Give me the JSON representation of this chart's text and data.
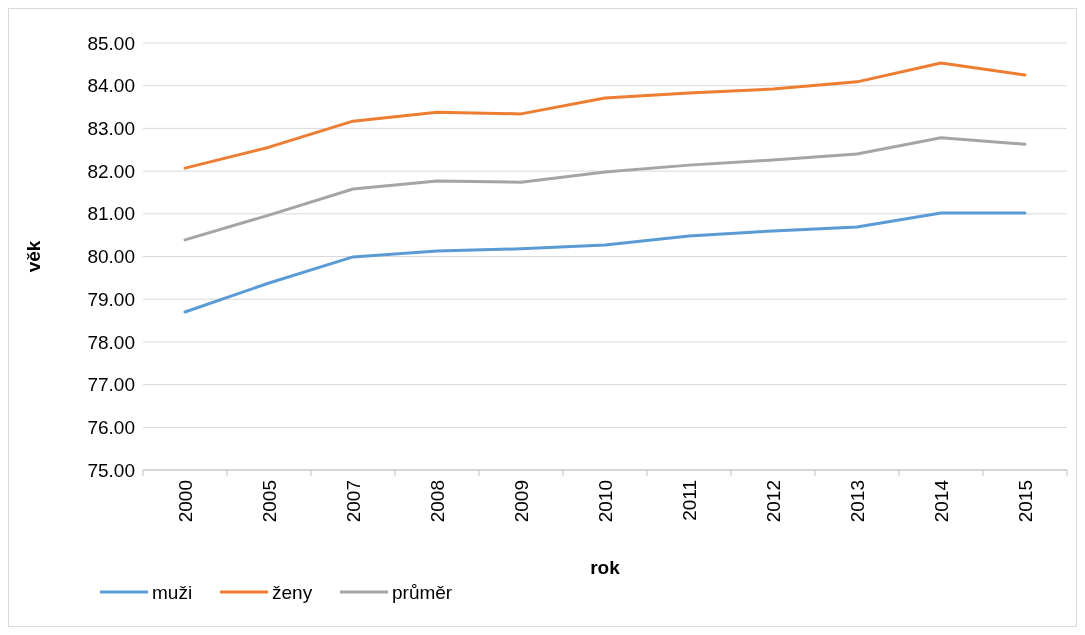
{
  "chart_data": {
    "type": "line",
    "xlabel": "rok",
    "ylabel": "věk",
    "categories": [
      "2000",
      "2005",
      "2007",
      "2008",
      "2009",
      "2010",
      "2011",
      "2012",
      "2013",
      "2014",
      "2015"
    ],
    "series": [
      {
        "name": "muži",
        "color": "#5b9bd5",
        "values": [
          78.7,
          79.38,
          79.99,
          80.13,
          80.18,
          80.27,
          80.48,
          80.6,
          80.69,
          81.02,
          81.02
        ]
      },
      {
        "name": "ženy",
        "color": "#ed7d31",
        "values": [
          82.07,
          82.56,
          83.17,
          83.38,
          83.34,
          83.71,
          83.83,
          83.92,
          84.09,
          84.53,
          84.25
        ]
      },
      {
        "name": "průměr",
        "color": "#a5a5a5",
        "values": [
          80.39,
          80.97,
          81.58,
          81.77,
          81.74,
          81.98,
          82.14,
          82.26,
          82.4,
          82.78,
          82.63
        ]
      }
    ],
    "ylim": [
      75,
      85
    ],
    "yticks": [
      {
        "value": 75,
        "label": "75.00"
      },
      {
        "value": 76,
        "label": "76.00"
      },
      {
        "value": 77,
        "label": "77.00"
      },
      {
        "value": 78,
        "label": "78.00"
      },
      {
        "value": 79,
        "label": "79.00"
      },
      {
        "value": 80,
        "label": "80.00"
      },
      {
        "value": 81,
        "label": "81.00"
      },
      {
        "value": 82,
        "label": "82.00"
      },
      {
        "value": 83,
        "label": "83.00"
      },
      {
        "value": 84,
        "label": "84.00"
      },
      {
        "value": 85,
        "label": "85.00"
      }
    ],
    "grid": "y",
    "legend": "bottom left",
    "marker": "none",
    "line_style": "solid"
  }
}
